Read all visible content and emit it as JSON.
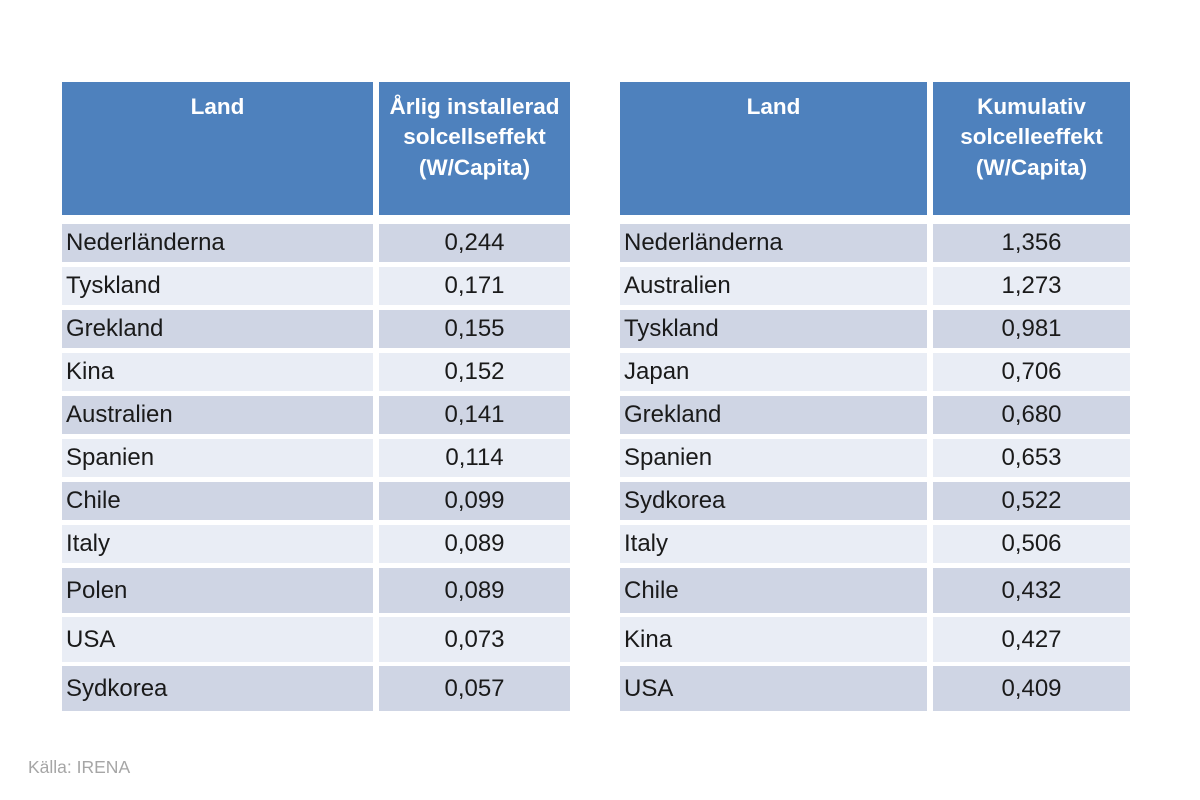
{
  "page": {
    "source_note": "Källa: IRENA"
  },
  "colors": {
    "header_bg": "#4e81bd",
    "header_text": "#ffffff",
    "row_band_dark": "#cfd5e4",
    "row_band_light": "#e9edf5",
    "body_text": "#1a1a1a",
    "source_text": "#a6a6a6"
  },
  "tables": [
    {
      "headers": {
        "land": "Land",
        "value": "Årlig installerad solcellseffekt (W/Capita)"
      },
      "rows": [
        {
          "land": "Nederländerna",
          "value": "0,244"
        },
        {
          "land": "Tyskland",
          "value": "0,171"
        },
        {
          "land": "Grekland",
          "value": "0,155"
        },
        {
          "land": "Kina",
          "value": "0,152"
        },
        {
          "land": "Australien",
          "value": "0,141"
        },
        {
          "land": "Spanien",
          "value": "0,114"
        },
        {
          "land": "Chile",
          "value": "0,099"
        },
        {
          "land": "Italy",
          "value": "0,089"
        },
        {
          "land": "Polen",
          "value": "0,089"
        },
        {
          "land": "USA",
          "value": "0,073"
        },
        {
          "land": "Sydkorea",
          "value": "0,057"
        }
      ]
    },
    {
      "headers": {
        "land": "Land",
        "value": "Kumulativ solcelleeffekt (W/Capita)"
      },
      "rows": [
        {
          "land": "Nederländerna",
          "value": "1,356"
        },
        {
          "land": "Australien",
          "value": "1,273"
        },
        {
          "land": "Tyskland",
          "value": "0,981"
        },
        {
          "land": "Japan",
          "value": "0,706"
        },
        {
          "land": "Grekland",
          "value": "0,680"
        },
        {
          "land": "Spanien",
          "value": "0,653"
        },
        {
          "land": "Sydkorea",
          "value": "0,522"
        },
        {
          "land": "Italy",
          "value": "0,506"
        },
        {
          "land": "Chile",
          "value": "0,432"
        },
        {
          "land": "Kina",
          "value": "0,427"
        },
        {
          "land": "USA",
          "value": "0,409"
        }
      ]
    }
  ],
  "chart_data": [
    {
      "type": "table",
      "title": "Årlig installerad solcellseffekt (W/Capita)",
      "columns": [
        "Land",
        "Årlig installerad solcellseffekt (W/Capita)"
      ],
      "rows": [
        [
          "Nederländerna",
          0.244
        ],
        [
          "Tyskland",
          0.171
        ],
        [
          "Grekland",
          0.155
        ],
        [
          "Kina",
          0.152
        ],
        [
          "Australien",
          0.141
        ],
        [
          "Spanien",
          0.114
        ],
        [
          "Chile",
          0.099
        ],
        [
          "Italy",
          0.089
        ],
        [
          "Polen",
          0.089
        ],
        [
          "USA",
          0.073
        ],
        [
          "Sydkorea",
          0.057
        ]
      ],
      "decimal_separator": ",",
      "source": "IRENA"
    },
    {
      "type": "table",
      "title": "Kumulativ solcelleeffekt (W/Capita)",
      "columns": [
        "Land",
        "Kumulativ solcelleeffekt (W/Capita)"
      ],
      "rows": [
        [
          "Nederländerna",
          1.356
        ],
        [
          "Australien",
          1.273
        ],
        [
          "Tyskland",
          0.981
        ],
        [
          "Japan",
          0.706
        ],
        [
          "Grekland",
          0.68
        ],
        [
          "Spanien",
          0.653
        ],
        [
          "Sydkorea",
          0.522
        ],
        [
          "Italy",
          0.506
        ],
        [
          "Chile",
          0.432
        ],
        [
          "Kina",
          0.427
        ],
        [
          "USA",
          0.409
        ]
      ],
      "decimal_separator": ",",
      "source": "IRENA"
    }
  ]
}
